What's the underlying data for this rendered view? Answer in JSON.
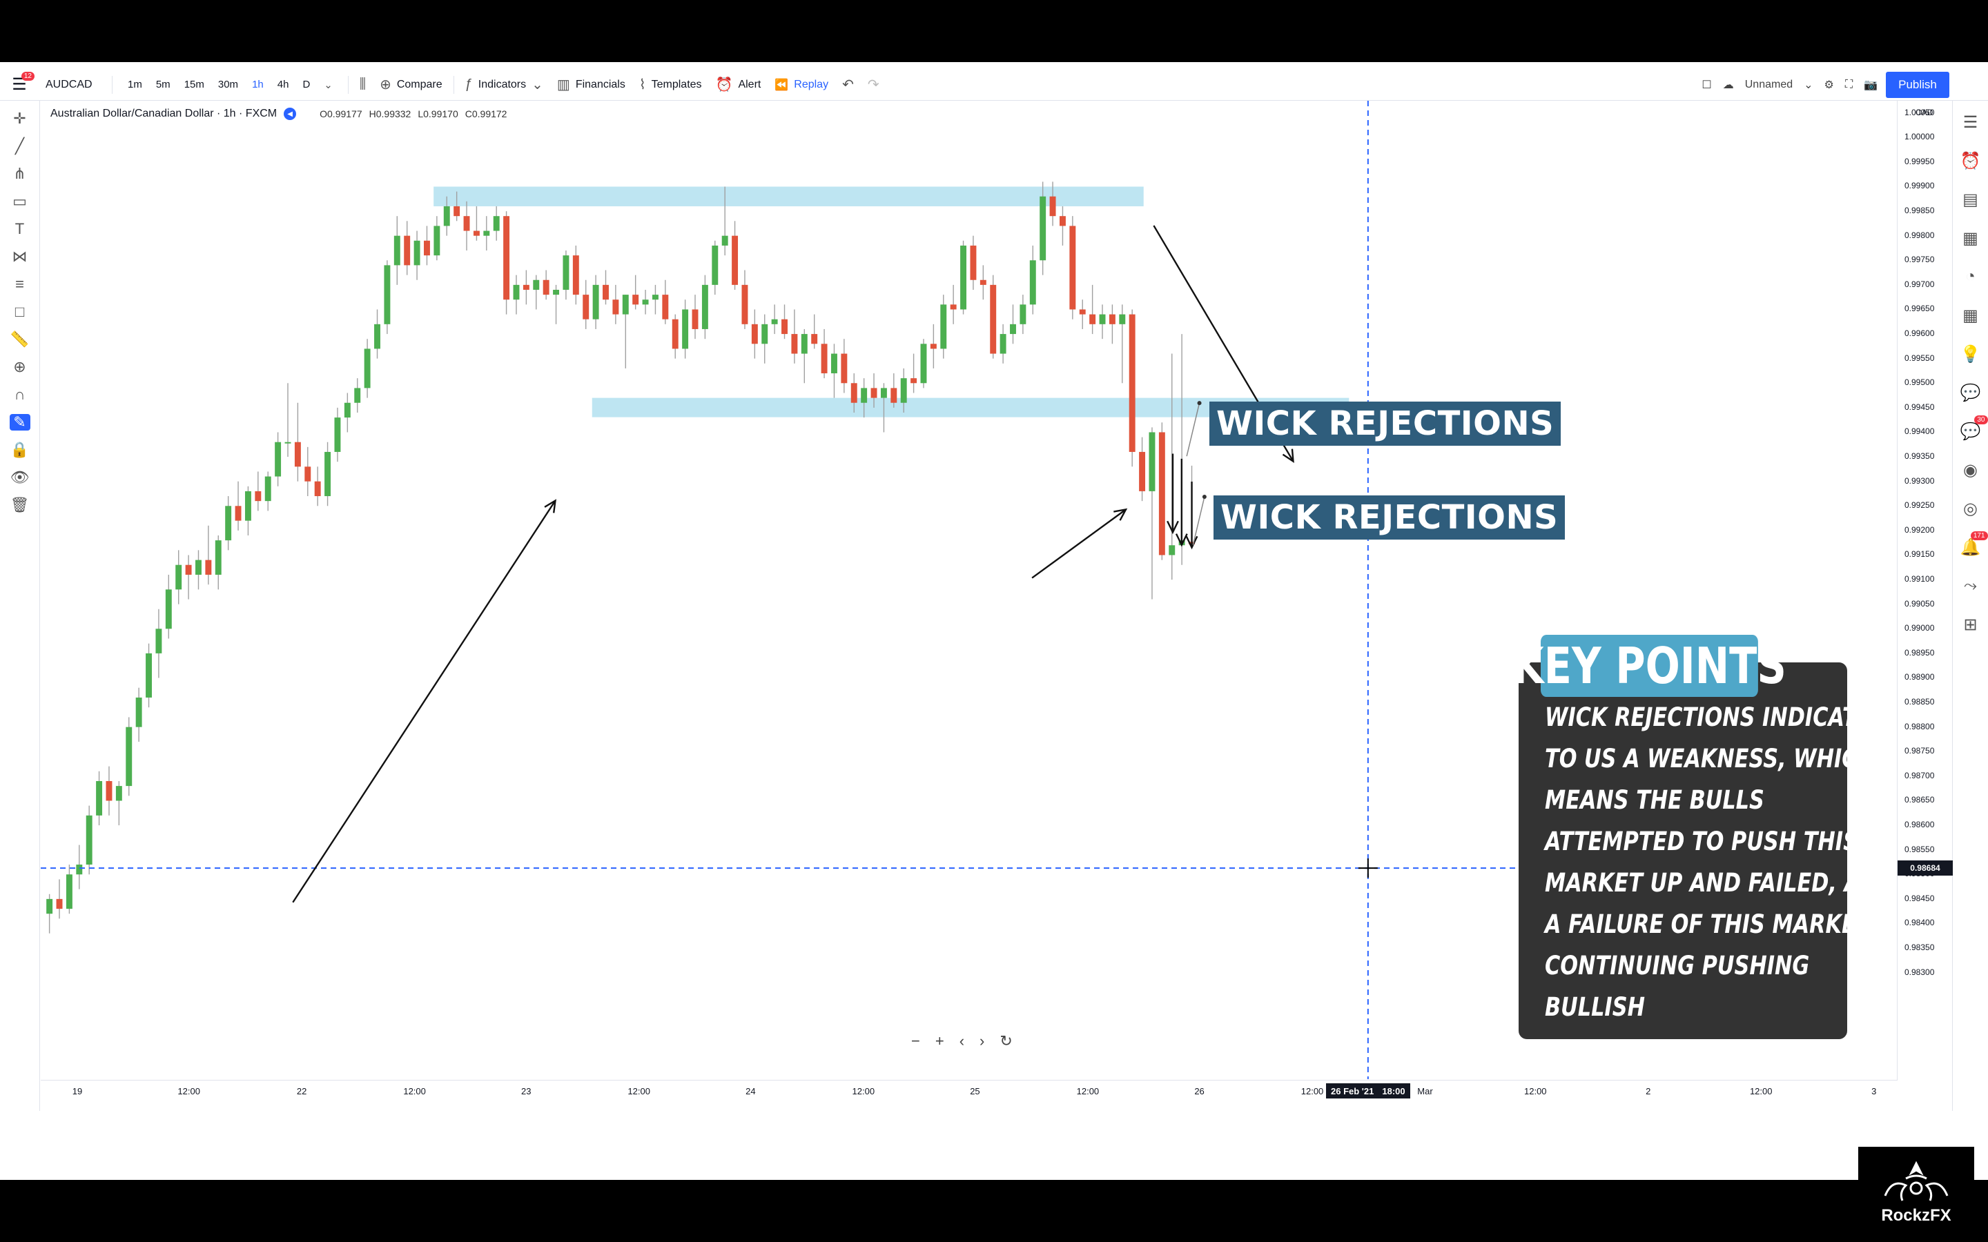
{
  "toolbar": {
    "menu_badge": "12",
    "symbol": "AUDCAD",
    "timeframes": [
      "1m",
      "5m",
      "15m",
      "30m",
      "1h",
      "4h",
      "D"
    ],
    "active_timeframe": "1h",
    "compare_label": "Compare",
    "indicators_label": "Indicators",
    "financials_label": "Financials",
    "templates_label": "Templates",
    "alert_label": "Alert",
    "replay_label": "Replay",
    "layout_name": "Unnamed",
    "publish_label": "Publish"
  },
  "legend": {
    "title": "Australian Dollar/Canadian Dollar · 1h · FXCM",
    "open": "O0.99177",
    "high": "H0.99332",
    "low": "L0.99170",
    "close": "C0.99172"
  },
  "price_scale": {
    "currency": "CAD",
    "ticks": [
      "1.00050",
      "1.00000",
      "0.99950",
      "0.99900",
      "0.99850",
      "0.99800",
      "0.99750",
      "0.99700",
      "0.99650",
      "0.99600",
      "0.99550",
      "0.99500",
      "0.99450",
      "0.99400",
      "0.99350",
      "0.99300",
      "0.99250",
      "0.99200",
      "0.99150",
      "0.99100",
      "0.99050",
      "0.99000",
      "0.98950",
      "0.98900",
      "0.98850",
      "0.98800",
      "0.98750",
      "0.98700",
      "0.98650",
      "0.98600",
      "0.98550",
      "0.98500",
      "0.98450",
      "0.98400",
      "0.98350",
      "0.98300"
    ],
    "current_price": "0.98684"
  },
  "time_scale": {
    "ticks": [
      "19",
      "12:00",
      "22",
      "12:00",
      "23",
      "12:00",
      "24",
      "12:00",
      "25",
      "12:00",
      "26",
      "12:00",
      "Mar",
      "12:00",
      "2",
      "12:00",
      "3"
    ],
    "crosshair_date": "26 Feb '21",
    "crosshair_time": "18:00"
  },
  "annotations": {
    "wick_label_1": "WICK REJECTIONS",
    "wick_label_2": "WICK REJECTIONS",
    "key_points_title": "KEY POINTS",
    "key_points_lines": [
      "WICK REJECTIONS INDICATE",
      "TO US A WEAKNESS, WHICH",
      "MEANS THE BULLS",
      "ATTEMPTED TO PUSH THIS",
      "MARKET UP AND FAILED, AND",
      "A FAILURE OF THIS MARKET",
      "CONTINUING PUSHING",
      "BULLISH"
    ]
  },
  "right_bar": {
    "badge_ideas": "30",
    "badge_notifications": "171"
  },
  "logo": {
    "text": "RockzFX"
  },
  "colors": {
    "bull": "#4caf50",
    "bear": "#e0533a",
    "zone": "#b3e0f0",
    "crosshair": "#2962ff",
    "label_bg": "#2f5d7c",
    "keypoints_title_bg": "#4fa7c9"
  },
  "chart_data": {
    "type": "candlestick",
    "symbol": "AUDCAD",
    "interval": "1h",
    "ylim": [
      0.9826,
      1.0008
    ],
    "zones": [
      {
        "from": 0.9986,
        "to": 0.999
      },
      {
        "from": 0.9944,
        "to": 0.9947
      }
    ],
    "candles": [
      [
        0.9842,
        0.9846,
        0.9838,
        0.9845
      ],
      [
        0.9845,
        0.9849,
        0.9841,
        0.9843
      ],
      [
        0.9843,
        0.9852,
        0.9842,
        0.985
      ],
      [
        0.985,
        0.9856,
        0.9847,
        0.9852
      ],
      [
        0.9852,
        0.9864,
        0.985,
        0.9862
      ],
      [
        0.9862,
        0.9871,
        0.986,
        0.9869
      ],
      [
        0.9869,
        0.9872,
        0.9862,
        0.9865
      ],
      [
        0.9865,
        0.9869,
        0.986,
        0.9868
      ],
      [
        0.9868,
        0.9882,
        0.9866,
        0.988
      ],
      [
        0.988,
        0.9888,
        0.9877,
        0.9886
      ],
      [
        0.9886,
        0.9897,
        0.9884,
        0.9895
      ],
      [
        0.9895,
        0.9904,
        0.989,
        0.99
      ],
      [
        0.99,
        0.9911,
        0.9898,
        0.9908
      ],
      [
        0.9908,
        0.9916,
        0.9905,
        0.9913
      ],
      [
        0.9913,
        0.9915,
        0.9906,
        0.9911
      ],
      [
        0.9911,
        0.9916,
        0.9908,
        0.9914
      ],
      [
        0.9914,
        0.9921,
        0.9909,
        0.9911
      ],
      [
        0.9911,
        0.9919,
        0.9908,
        0.9918
      ],
      [
        0.9918,
        0.9927,
        0.9916,
        0.9925
      ],
      [
        0.9925,
        0.993,
        0.992,
        0.9922
      ],
      [
        0.9922,
        0.9929,
        0.9919,
        0.9928
      ],
      [
        0.9928,
        0.9932,
        0.9924,
        0.9926
      ],
      [
        0.9926,
        0.9932,
        0.9924,
        0.9931
      ],
      [
        0.9931,
        0.994,
        0.9929,
        0.9938
      ],
      [
        0.9938,
        0.995,
        0.9935,
        0.9938
      ],
      [
        0.9938,
        0.9946,
        0.993,
        0.9933
      ],
      [
        0.9933,
        0.9937,
        0.9927,
        0.993
      ],
      [
        0.993,
        0.9933,
        0.9925,
        0.9927
      ],
      [
        0.9927,
        0.9938,
        0.9925,
        0.9936
      ],
      [
        0.9936,
        0.9945,
        0.9934,
        0.9943
      ],
      [
        0.9943,
        0.9948,
        0.994,
        0.9946
      ],
      [
        0.9946,
        0.9951,
        0.9944,
        0.9949
      ],
      [
        0.9949,
        0.9959,
        0.9947,
        0.9957
      ],
      [
        0.9957,
        0.9965,
        0.9955,
        0.9962
      ],
      [
        0.9962,
        0.9975,
        0.996,
        0.9974
      ],
      [
        0.9974,
        0.9984,
        0.997,
        0.998
      ],
      [
        0.998,
        0.9983,
        0.9972,
        0.9974
      ],
      [
        0.9974,
        0.9981,
        0.9971,
        0.9979
      ],
      [
        0.9979,
        0.9982,
        0.9974,
        0.9976
      ],
      [
        0.9976,
        0.9984,
        0.9975,
        0.9982
      ],
      [
        0.9982,
        0.9988,
        0.998,
        0.9986
      ],
      [
        0.9986,
        0.9989,
        0.9983,
        0.9984
      ],
      [
        0.9984,
        0.9987,
        0.9977,
        0.9981
      ],
      [
        0.9981,
        0.9986,
        0.9979,
        0.998
      ],
      [
        0.998,
        0.9984,
        0.9977,
        0.9981
      ],
      [
        0.9981,
        0.9986,
        0.9979,
        0.9984
      ],
      [
        0.9984,
        0.9985,
        0.9964,
        0.9967
      ],
      [
        0.9967,
        0.9972,
        0.9964,
        0.997
      ],
      [
        0.997,
        0.9973,
        0.9966,
        0.9969
      ],
      [
        0.9969,
        0.9972,
        0.9965,
        0.9971
      ],
      [
        0.9971,
        0.9973,
        0.9967,
        0.9968
      ],
      [
        0.9968,
        0.997,
        0.9962,
        0.9969
      ],
      [
        0.9969,
        0.9977,
        0.9967,
        0.9976
      ],
      [
        0.9976,
        0.9978,
        0.9966,
        0.9968
      ],
      [
        0.9968,
        0.9971,
        0.9961,
        0.9963
      ],
      [
        0.9963,
        0.9972,
        0.9961,
        0.997
      ],
      [
        0.997,
        0.9973,
        0.9966,
        0.9967
      ],
      [
        0.9967,
        0.997,
        0.9962,
        0.9964
      ],
      [
        0.9964,
        0.9968,
        0.9953,
        0.9968
      ],
      [
        0.9968,
        0.9972,
        0.9965,
        0.9966
      ],
      [
        0.9966,
        0.9969,
        0.9964,
        0.9967
      ],
      [
        0.9967,
        0.997,
        0.9964,
        0.9968
      ],
      [
        0.9968,
        0.9971,
        0.9962,
        0.9963
      ],
      [
        0.9963,
        0.9964,
        0.9955,
        0.9957
      ],
      [
        0.9957,
        0.9967,
        0.9955,
        0.9965
      ],
      [
        0.9965,
        0.9968,
        0.9959,
        0.9961
      ],
      [
        0.9961,
        0.9972,
        0.9959,
        0.997
      ],
      [
        0.997,
        0.9979,
        0.9968,
        0.9978
      ],
      [
        0.9978,
        0.999,
        0.9976,
        0.998
      ],
      [
        0.998,
        0.9983,
        0.9969,
        0.997
      ],
      [
        0.997,
        0.9973,
        0.9961,
        0.9962
      ],
      [
        0.9962,
        0.9965,
        0.9955,
        0.9958
      ],
      [
        0.9958,
        0.9964,
        0.9954,
        0.9962
      ],
      [
        0.9962,
        0.9966,
        0.996,
        0.9963
      ],
      [
        0.9963,
        0.9966,
        0.9959,
        0.996
      ],
      [
        0.996,
        0.9965,
        0.9954,
        0.9956
      ],
      [
        0.9956,
        0.9961,
        0.995,
        0.996
      ],
      [
        0.996,
        0.9964,
        0.9957,
        0.9958
      ],
      [
        0.9958,
        0.9961,
        0.9951,
        0.9952
      ],
      [
        0.9952,
        0.9958,
        0.9947,
        0.9956
      ],
      [
        0.9956,
        0.9959,
        0.9948,
        0.995
      ],
      [
        0.995,
        0.9952,
        0.9944,
        0.9946
      ],
      [
        0.9946,
        0.9951,
        0.9943,
        0.9949
      ],
      [
        0.9949,
        0.9952,
        0.9945,
        0.9947
      ],
      [
        0.9947,
        0.995,
        0.994,
        0.9949
      ],
      [
        0.9949,
        0.9952,
        0.9945,
        0.9946
      ],
      [
        0.9946,
        0.9953,
        0.9944,
        0.9951
      ],
      [
        0.9951,
        0.9956,
        0.9948,
        0.995
      ],
      [
        0.995,
        0.9959,
        0.9949,
        0.9958
      ],
      [
        0.9958,
        0.9962,
        0.9953,
        0.9957
      ],
      [
        0.9957,
        0.9968,
        0.9955,
        0.9966
      ],
      [
        0.9966,
        0.997,
        0.9962,
        0.9965
      ],
      [
        0.9965,
        0.9979,
        0.9964,
        0.9978
      ],
      [
        0.9978,
        0.998,
        0.9969,
        0.9971
      ],
      [
        0.9971,
        0.9974,
        0.9967,
        0.997
      ],
      [
        0.997,
        0.9972,
        0.9955,
        0.9956
      ],
      [
        0.9956,
        0.9962,
        0.9954,
        0.996
      ],
      [
        0.996,
        0.9966,
        0.9958,
        0.9962
      ],
      [
        0.9962,
        0.9968,
        0.996,
        0.9966
      ],
      [
        0.9966,
        0.9978,
        0.9964,
        0.9975
      ],
      [
        0.9975,
        0.9991,
        0.9972,
        0.9988
      ],
      [
        0.9988,
        0.9991,
        0.9982,
        0.9984
      ],
      [
        0.9984,
        0.9986,
        0.9978,
        0.9982
      ],
      [
        0.9982,
        0.9984,
        0.9963,
        0.9965
      ],
      [
        0.9965,
        0.9967,
        0.9961,
        0.9964
      ],
      [
        0.9964,
        0.997,
        0.996,
        0.9962
      ],
      [
        0.9962,
        0.9966,
        0.9959,
        0.9964
      ],
      [
        0.9964,
        0.9966,
        0.9958,
        0.9962
      ],
      [
        0.9962,
        0.9966,
        0.995,
        0.9964
      ],
      [
        0.9964,
        0.9965,
        0.9933,
        0.9936
      ],
      [
        0.9936,
        0.9939,
        0.9926,
        0.9928
      ],
      [
        0.9928,
        0.9941,
        0.9906,
        0.994
      ],
      [
        0.994,
        0.9942,
        0.9914,
        0.9915
      ],
      [
        0.9915,
        0.9956,
        0.991,
        0.9917
      ],
      [
        0.9917,
        0.996,
        0.9913,
        0.9918
      ],
      [
        0.99177,
        0.99332,
        0.9917,
        0.99172
      ]
    ]
  }
}
